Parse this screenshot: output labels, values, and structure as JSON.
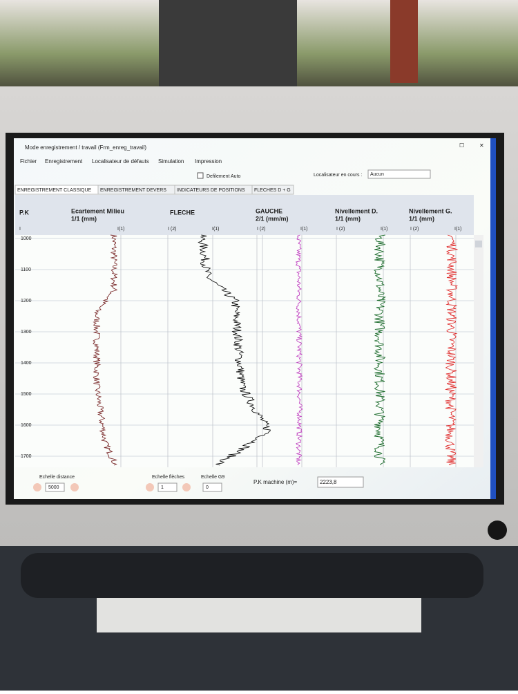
{
  "window": {
    "title": "Mode enregistrement / travail (Frm_enreg_travail)"
  },
  "menu": [
    "Fichier",
    "Enregistrement",
    "Localisateur de défauts",
    "Simulation",
    "Impression"
  ],
  "toolbar": {
    "checkbox_label": "Defilement Auto",
    "locator_label": "Localisateur en cours :",
    "locator_value": "Aucun"
  },
  "tabs": [
    "ENREGISTREMENT CLASSIQUE",
    "ENREGISTREMENT DEVERS",
    "INDICATEURS DE POSITIONS",
    "FLECHES D + G"
  ],
  "columns": [
    {
      "title": "P.K"
    },
    {
      "title": "Ecartement Milieu",
      "scale": "1/1 (mm)"
    },
    {
      "title": "FLECHE"
    },
    {
      "title": "GAUCHE",
      "scale": "2/1 (mm/m)"
    },
    {
      "title": "Nivellement D.",
      "scale": "1/1 (mm)"
    },
    {
      "title": "Nivellement G.",
      "scale": "1/1 (mm)"
    }
  ],
  "scale_labels": [
    "I",
    "I(1)",
    "I (2)",
    "I(1)",
    "I (2)",
    "I(1)",
    "I (2)",
    "I(1)",
    "I (2)",
    "I(1)"
  ],
  "pk_axis": [
    1000,
    1100,
    1200,
    1300,
    1400,
    1500,
    1600,
    1700
  ],
  "bottom": {
    "distance_label": "Echelle distance",
    "distance_value": "5000",
    "fleches_label": "Echelle flèches",
    "fleches_value": "1",
    "g9_label": "Echelle G9",
    "g9_value": "0",
    "pk_label": "P.K machine (m)=",
    "pk_value": "2223,8"
  }
}
